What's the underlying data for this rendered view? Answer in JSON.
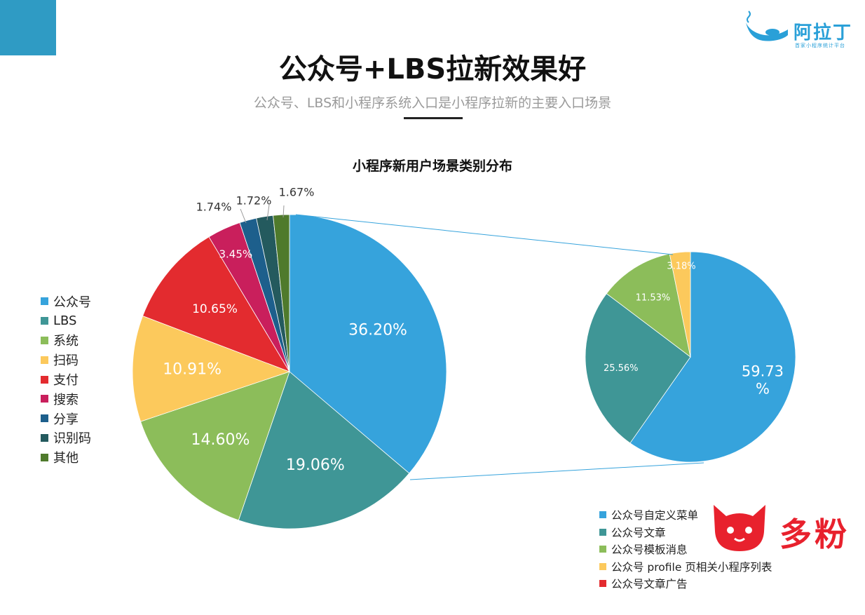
{
  "header": {
    "title": "公众号+LBS拉新效果好",
    "subtitle": "公众号、LBS和小程序系统入口是小程序拉新的主要入口场景",
    "logo_text": "阿拉丁",
    "logo_subtext": "首家小程序统计平台"
  },
  "watermark": {
    "brand_text": "多粉"
  },
  "colors": {
    "accent": "#2f9bc4",
    "brand_red": "#e8212d"
  },
  "chart_data": [
    {
      "type": "pie",
      "title": "小程序新用户场景类别分布",
      "categories": [
        "公众号",
        "LBS",
        "系统",
        "扫码",
        "支付",
        "搜索",
        "分享",
        "识别码",
        "其他"
      ],
      "values": [
        36.2,
        19.06,
        14.6,
        10.91,
        10.65,
        3.45,
        1.74,
        1.72,
        1.67
      ],
      "labels": [
        "36.20%",
        "19.06%",
        "14.60%",
        "10.91%",
        "10.65%",
        "3.45%",
        "1.74%",
        "1.72%",
        "1.67%"
      ],
      "colors": [
        "#36a3dc",
        "#3f9696",
        "#8cbd5a",
        "#fcc95c",
        "#e32b2f",
        "#c91f5c",
        "#1d5f8c",
        "#245a5e",
        "#4f7a2c"
      ],
      "legend_position": "left"
    },
    {
      "type": "pie",
      "title": "",
      "breakdown_of": "公众号",
      "categories": [
        "公众号自定义菜单",
        "公众号文章",
        "公众号模板消息",
        "公众号 profile 页相关小程序列表",
        "公众号文章广告"
      ],
      "values": [
        59.73,
        25.56,
        11.53,
        3.18,
        null
      ],
      "labels": [
        "59.73\n%",
        "25.56%",
        "11.53%",
        "3.18%",
        ""
      ],
      "colors": [
        "#36a3dc",
        "#3f9696",
        "#8cbd5a",
        "#fcc95c",
        "#e32b2f"
      ],
      "legend_position": "bottom-right"
    }
  ]
}
